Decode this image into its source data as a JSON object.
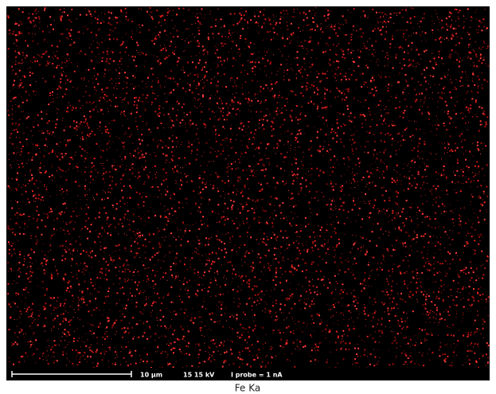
{
  "map": {
    "scale": "10 µm",
    "voltage": "15 15 kV",
    "probe": "I probe = 1 nA"
  },
  "caption": "Fe Ka"
}
